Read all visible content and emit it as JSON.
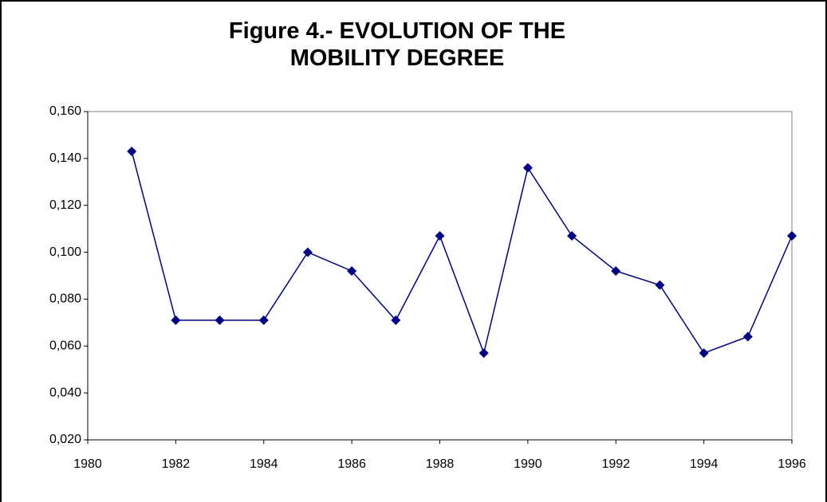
{
  "chart_data": {
    "type": "line",
    "title": "Figure 4.- EVOLUTION OF THE MOBILITY DEGREE",
    "x": [
      1981,
      1982,
      1983,
      1984,
      1985,
      1986,
      1987,
      1988,
      1989,
      1990,
      1991,
      1992,
      1993,
      1994,
      1995,
      1996
    ],
    "series": [
      {
        "color": "#000080",
        "values": [
          0.143,
          0.071,
          0.071,
          0.071,
          0.1,
          0.092,
          0.071,
          0.107,
          0.057,
          0.136,
          0.107,
          0.092,
          0.086,
          0.057,
          0.064,
          0.107
        ]
      }
    ],
    "xlim": [
      1980,
      1996
    ],
    "xticks": [
      1980,
      1982,
      1984,
      1986,
      1988,
      1990,
      1992,
      1994,
      1996
    ],
    "ylim": [
      0.02,
      0.16
    ],
    "yticks": [
      {
        "value": 0.02,
        "label": "0,020"
      },
      {
        "value": 0.04,
        "label": "0,040"
      },
      {
        "value": 0.06,
        "label": "0,060"
      },
      {
        "value": 0.08,
        "label": "0,080"
      },
      {
        "value": 0.1,
        "label": "0,100"
      },
      {
        "value": 0.12,
        "label": "0,120"
      },
      {
        "value": 0.14,
        "label": "0,140"
      },
      {
        "value": 0.16,
        "label": "0,160"
      }
    ],
    "grid": false
  }
}
